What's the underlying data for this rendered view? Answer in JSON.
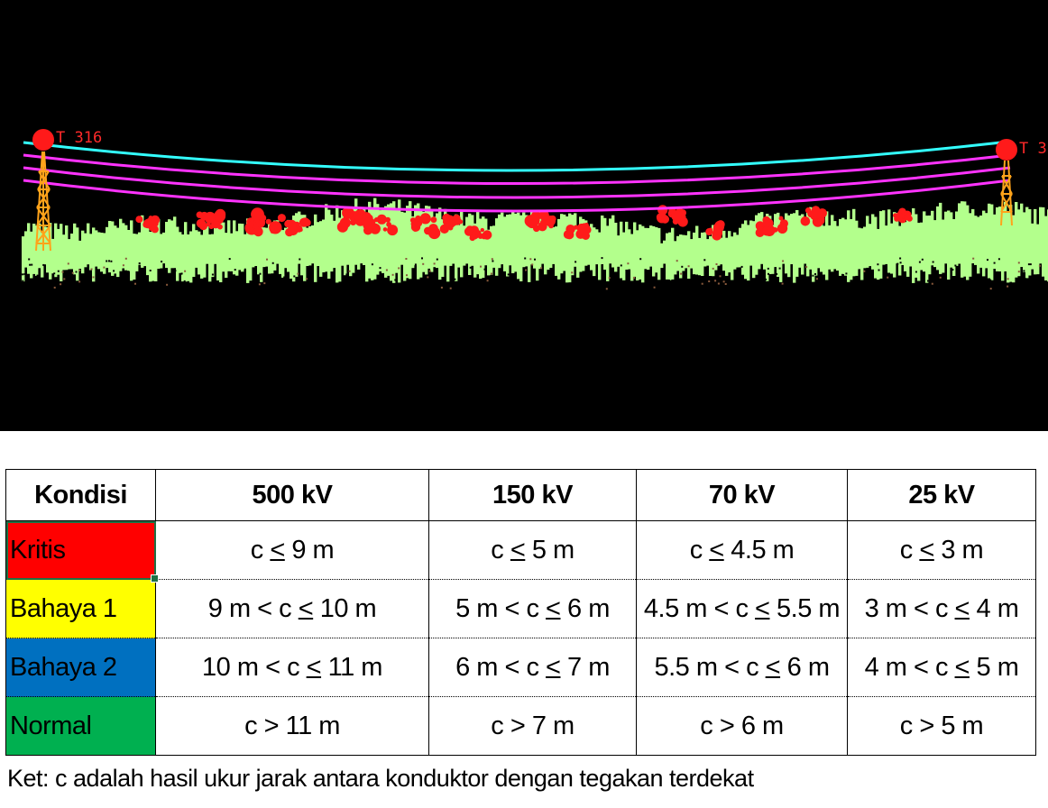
{
  "lidar_view": {
    "tower_left_label": "T 316",
    "tower_right_label": "T 3",
    "colors": {
      "background": "#000000",
      "vegetation_normal": "#b3ff8c",
      "vegetation_critical": "#ff1a1a",
      "conductor_top": "#33ffff",
      "conductor_lines": "#ff33ff",
      "tower": "#ffa31a",
      "tower_marker": "#ff1a1a"
    }
  },
  "table": {
    "headers": [
      "Kondisi",
      "500 kV",
      "150 kV",
      "70 kV",
      "25 kV"
    ],
    "rows": [
      {
        "condition": "Kritis",
        "color": "#ff0000",
        "cells": [
          [
            "c ",
            "<",
            " 9 m"
          ],
          [
            "c ",
            "<",
            " 5 m"
          ],
          [
            "c ",
            "<",
            "  4.5 m"
          ],
          [
            "c ",
            "<",
            " 3 m"
          ]
        ]
      },
      {
        "condition": "Bahaya 1",
        "color": "#ffff00",
        "cells": [
          [
            "9 m < c ",
            "<",
            " 10 m"
          ],
          [
            "5 m < c ",
            "<",
            " 6 m"
          ],
          [
            "4.5 m < c ",
            "<",
            " 5.5 m"
          ],
          [
            "3 m < c ",
            "<",
            " 4 m"
          ]
        ]
      },
      {
        "condition": "Bahaya 2",
        "color": "#0070c0",
        "cells": [
          [
            "10 m < c ",
            "<",
            " 11 m"
          ],
          [
            "6 m < c ",
            "<",
            " 7 m"
          ],
          [
            "5.5 m < c ",
            "<",
            " 6 m"
          ],
          [
            "4 m < c  ",
            "<",
            " 5 m"
          ]
        ]
      },
      {
        "condition": "Normal",
        "color": "#00b050",
        "cells": [
          [
            "c > 11 m",
            "",
            ""
          ],
          [
            "c > 7 m",
            "",
            ""
          ],
          [
            "c > 6 m",
            "",
            ""
          ],
          [
            "c > 5 m",
            "",
            ""
          ]
        ]
      }
    ]
  },
  "note": "Ket: c adalah hasil ukur jarak antara konduktor dengan tegakan terdekat"
}
